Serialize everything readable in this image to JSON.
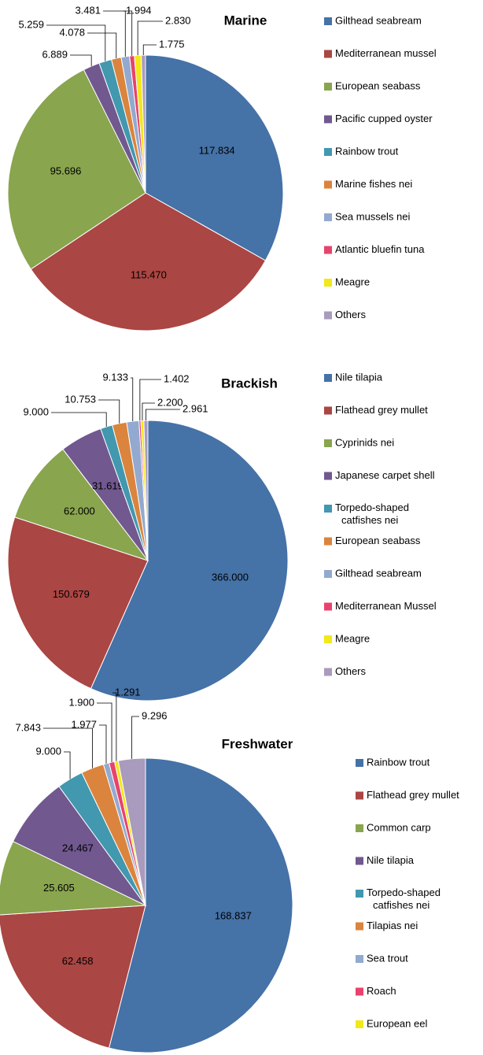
{
  "chart_data": [
    {
      "type": "pie",
      "title": "Marine",
      "categories": [
        "Gilthead seabream",
        "Mediterranean mussel",
        "European seabass",
        "Pacific cupped oyster",
        "Rainbow trout",
        "Marine fishes nei",
        "Sea mussels nei",
        "Atlantic bluefin tuna",
        "Meagre",
        "Others"
      ],
      "values": [
        117.834,
        115.47,
        95.696,
        6.889,
        5.259,
        4.078,
        3.481,
        1.994,
        2.83,
        1.775
      ],
      "value_labels": [
        "117.834",
        "115.470",
        "95.696",
        "6.889",
        "5.259",
        "4.078",
        "3.481",
        "1.994",
        "2.830",
        "1.775"
      ],
      "colors": [
        "#4572a7",
        "#aa4643",
        "#89a54e",
        "#71588f",
        "#4198af",
        "#db843d",
        "#93a9cf",
        "#e8436c",
        "#f2e81a",
        "#a99bbd"
      ]
    },
    {
      "type": "pie",
      "title": "Brackish",
      "categories": [
        "Nile tilapia",
        "Flathead grey mullet",
        "Cyprinids nei",
        "Japanese carpet shell",
        "Torpedo-shaped catfishes nei",
        "European seabass",
        "Gilthead seabream",
        "Mediterranean Mussel",
        "Meagre",
        "Others"
      ],
      "values": [
        366,
        150.679,
        62,
        31.619,
        9,
        10.753,
        9.133,
        1.402,
        2.2,
        2.961
      ],
      "value_labels": [
        "366.000",
        "150.679",
        "62.000",
        "31.619",
        "9.000",
        "10.753",
        "9.133",
        "1.402",
        "2.200",
        "2.961"
      ],
      "colors": [
        "#4572a7",
        "#aa4643",
        "#89a54e",
        "#71588f",
        "#4198af",
        "#db843d",
        "#93a9cf",
        "#e8436c",
        "#f2e81a",
        "#a99bbd"
      ]
    },
    {
      "type": "pie",
      "title": "Freshwater",
      "categories": [
        "Rainbow trout",
        "Flathead grey mullet",
        "Common carp",
        "Nile tilapia",
        "Torpedo-shaped catfishes nei",
        "Tilapias nei",
        "Sea trout",
        "Roach",
        "European eel",
        null
      ],
      "values": [
        168.837,
        62.458,
        25.605,
        24.467,
        9,
        7.843,
        1.977,
        1.9,
        1.291,
        9.296
      ],
      "value_labels": [
        "168.837",
        "62.458",
        "25.605",
        "24.467",
        "9.000",
        "7.843",
        "1.977",
        "1.900",
        "1.291",
        "9.296"
      ],
      "colors": [
        "#4572a7",
        "#aa4643",
        "#89a54e",
        "#71588f",
        "#4198af",
        "#db843d",
        "#93a9cf",
        "#e8436c",
        "#f2e81a",
        "#a99bbd"
      ]
    }
  ]
}
